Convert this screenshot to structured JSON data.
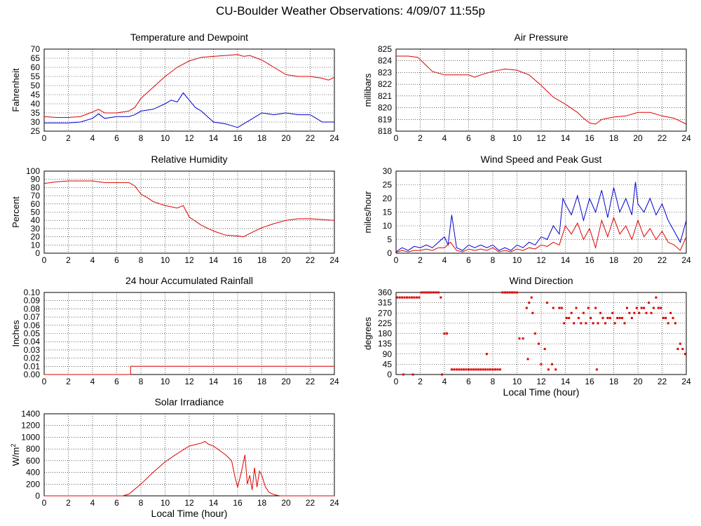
{
  "page": {
    "title": "CU-Boulder Weather Observations: 4/09/07 11:55p"
  },
  "colors": {
    "red": "#dd0000",
    "blue": "#0000cc",
    "grid": "#000000"
  },
  "chart_data": [
    {
      "id": "temperature",
      "type": "line",
      "title": "Temperature and Dewpoint",
      "xlabel": "",
      "ylabel": "Fahrenheit",
      "xlim": [
        0,
        24
      ],
      "ylim": [
        25,
        70
      ],
      "xticks": [
        0,
        2,
        4,
        6,
        8,
        10,
        12,
        14,
        16,
        18,
        20,
        22,
        24
      ],
      "yticks": [
        25,
        30,
        35,
        40,
        45,
        50,
        55,
        60,
        65,
        70
      ],
      "grid": true,
      "series": [
        {
          "name": "Temperature",
          "color": "#dd0000",
          "x": [
            0,
            1,
            2,
            3,
            4,
            4.5,
            5,
            6,
            7,
            7.5,
            8,
            9,
            10,
            11,
            12,
            13,
            14,
            15,
            16,
            16.5,
            17,
            18,
            19,
            20,
            21,
            22,
            23,
            23.5,
            24
          ],
          "y": [
            33,
            32.5,
            32.5,
            33,
            35.5,
            37,
            35,
            35,
            36,
            38,
            43,
            49,
            55,
            60,
            63.5,
            65.5,
            66,
            66.5,
            67,
            66,
            66.5,
            64,
            60,
            56,
            55,
            55,
            54,
            53,
            54.5
          ]
        },
        {
          "name": "Dewpoint",
          "color": "#0000cc",
          "x": [
            0,
            1,
            2,
            3,
            4,
            4.5,
            5,
            6,
            7,
            7.5,
            8,
            9,
            10,
            10.5,
            11,
            11.5,
            12,
            12.5,
            13,
            13.5,
            14,
            15,
            15.5,
            16,
            16.5,
            17,
            17.5,
            18,
            19,
            20,
            21,
            22,
            22.5,
            23,
            24
          ],
          "y": [
            29.5,
            29.5,
            29.5,
            30,
            32,
            34.5,
            32,
            33,
            33,
            34,
            36,
            37,
            40,
            42,
            41,
            46,
            42,
            38,
            36,
            33,
            30,
            29,
            28,
            27,
            29,
            31,
            33,
            35,
            34,
            35,
            34,
            34,
            32,
            30,
            30
          ]
        }
      ]
    },
    {
      "id": "pressure",
      "type": "line",
      "title": "Air Pressure",
      "xlabel": "",
      "ylabel": "millibars",
      "xlim": [
        0,
        24
      ],
      "ylim": [
        818,
        825
      ],
      "xticks": [
        0,
        2,
        4,
        6,
        8,
        10,
        12,
        14,
        16,
        18,
        20,
        22,
        24
      ],
      "yticks": [
        818,
        819,
        820,
        821,
        822,
        823,
        824,
        825
      ],
      "grid": true,
      "series": [
        {
          "name": "Air Pressure",
          "color": "#dd0000",
          "x": [
            0,
            1,
            1.8,
            2.3,
            3,
            4,
            5,
            6,
            6.5,
            7,
            8,
            9,
            10,
            11,
            12,
            13,
            14,
            15,
            15.5,
            16,
            16.5,
            17,
            18,
            19,
            20,
            21,
            22,
            23,
            24
          ],
          "y": [
            824.4,
            824.4,
            824.3,
            823.8,
            823.1,
            822.8,
            822.8,
            822.8,
            822.6,
            822.8,
            823.1,
            823.3,
            823.2,
            822.8,
            821.9,
            820.9,
            820.3,
            819.6,
            819.1,
            818.7,
            818.6,
            819,
            819.2,
            819.3,
            819.6,
            819.6,
            819.3,
            819.1,
            818.6
          ]
        }
      ]
    },
    {
      "id": "humidity",
      "type": "line",
      "title": "Relative Humidity",
      "xlabel": "",
      "ylabel": "Percent",
      "xlim": [
        0,
        24
      ],
      "ylim": [
        0,
        100
      ],
      "xticks": [
        0,
        2,
        4,
        6,
        8,
        10,
        12,
        14,
        16,
        18,
        20,
        22,
        24
      ],
      "yticks": [
        0,
        10,
        20,
        30,
        40,
        50,
        60,
        70,
        80,
        90,
        100
      ],
      "grid": true,
      "series": [
        {
          "name": "Relative Humidity",
          "color": "#dd0000",
          "x": [
            0,
            1,
            2,
            3,
            4,
            5,
            6,
            7,
            7.5,
            8,
            8.5,
            9,
            10,
            11,
            11.5,
            12,
            13,
            14,
            15,
            16,
            16.5,
            17,
            18,
            19,
            20,
            21,
            22,
            23,
            24
          ],
          "y": [
            85,
            87,
            88,
            88,
            88,
            86,
            86,
            86,
            82,
            72,
            68,
            63,
            58,
            55,
            58,
            44,
            34,
            27,
            22,
            21,
            20,
            24,
            31,
            36,
            40,
            42,
            42,
            41,
            40
          ]
        }
      ]
    },
    {
      "id": "wind-speed",
      "type": "line",
      "title": "Wind Speed and Peak Gust",
      "xlabel": "",
      "ylabel": "miles/hour",
      "xlim": [
        0,
        24
      ],
      "ylim": [
        0,
        30
      ],
      "xticks": [
        0,
        2,
        4,
        6,
        8,
        10,
        12,
        14,
        16,
        18,
        20,
        22,
        24
      ],
      "yticks": [
        0,
        5,
        10,
        15,
        20,
        25,
        30
      ],
      "grid": true,
      "series": [
        {
          "name": "Peak Gust",
          "color": "#0000cc",
          "x": [
            0,
            0.5,
            1,
            1.5,
            2,
            2.5,
            3,
            3.5,
            4,
            4.3,
            4.6,
            5,
            5.5,
            6,
            6.5,
            7,
            7.5,
            8,
            8.5,
            9,
            9.5,
            10,
            10.5,
            11,
            11.5,
            12,
            12.5,
            13,
            13.5,
            13.8,
            14,
            14.5,
            15,
            15.5,
            16,
            16.5,
            17,
            17.5,
            18,
            18.5,
            19,
            19.5,
            19.8,
            20,
            20.5,
            21,
            21.5,
            22,
            22.5,
            23,
            23.5,
            24
          ],
          "y": [
            0.5,
            2,
            1,
            2.5,
            2,
            3,
            2,
            4,
            6,
            3,
            14,
            2,
            1,
            3,
            2,
            3,
            2,
            3,
            1,
            2,
            1,
            3,
            2,
            4,
            3,
            6,
            5,
            10,
            7,
            20,
            18,
            14,
            21,
            12,
            20,
            15,
            23,
            13,
            24,
            15,
            20,
            14,
            26,
            18,
            15,
            20,
            14,
            18,
            12,
            8,
            4,
            12
          ]
        },
        {
          "name": "Wind Speed",
          "color": "#dd0000",
          "x": [
            0,
            0.5,
            1,
            1.5,
            2,
            2.5,
            3,
            3.5,
            4,
            4.5,
            5,
            5.5,
            6,
            6.5,
            7,
            7.5,
            8,
            8.5,
            9,
            9.5,
            10,
            10.5,
            11,
            11.5,
            12,
            12.5,
            13,
            13.5,
            14,
            14.5,
            15,
            15.5,
            16,
            16.5,
            17,
            17.5,
            18,
            18.5,
            19,
            19.5,
            20,
            20.5,
            21,
            21.5,
            22,
            22.5,
            23,
            23.5,
            24
          ],
          "y": [
            0.3,
            1,
            0.5,
            1,
            1,
            1.5,
            1,
            2,
            2,
            4,
            1,
            0.5,
            1.5,
            1,
            1.5,
            1,
            2,
            0.5,
            1,
            0.5,
            1.5,
            1,
            2,
            1.5,
            3,
            2.5,
            4,
            3,
            10,
            7,
            11,
            5,
            9,
            2,
            12,
            6,
            13,
            7,
            10,
            5,
            12,
            6,
            9,
            5,
            8,
            4,
            3,
            1,
            6
          ]
        }
      ]
    },
    {
      "id": "rainfall",
      "type": "line",
      "title": "24 hour Accumulated Rainfall",
      "xlabel": "",
      "ylabel": "Inches",
      "xlim": [
        0,
        24
      ],
      "ylim": [
        0,
        0.1
      ],
      "xticks": [
        0,
        2,
        4,
        6,
        8,
        10,
        12,
        14,
        16,
        18,
        20,
        22,
        24
      ],
      "yticks": [
        "0.00",
        "0.01",
        "0.02",
        "0.03",
        "0.04",
        "0.05",
        "0.06",
        "0.07",
        "0.08",
        "0.09",
        "0.10"
      ],
      "grid": true,
      "series": [
        {
          "name": "Accumulated Rainfall",
          "color": "#dd0000",
          "x": [
            0,
            7.0,
            7.15,
            7.15,
            24
          ],
          "y": [
            0,
            0,
            0,
            0.01,
            0.01
          ]
        }
      ]
    },
    {
      "id": "wind-direction",
      "type": "scatter",
      "title": "Wind Direction",
      "xlabel": "Local Time (hour)",
      "ylabel": "degrees",
      "xlim": [
        0,
        24
      ],
      "ylim": [
        0,
        360
      ],
      "xticks": [
        0,
        2,
        4,
        6,
        8,
        10,
        12,
        14,
        16,
        18,
        20,
        22,
        24
      ],
      "yticks": [
        0,
        45,
        90,
        135,
        180,
        225,
        270,
        315,
        360
      ],
      "grid": true,
      "series": [
        {
          "name": "Wind Direction",
          "color": "#dd0000",
          "x": [
            0.1,
            0.3,
            0.5,
            0.7,
            0.9,
            1.1,
            1.3,
            1.5,
            1.7,
            1.9,
            2.1,
            2.3,
            2.5,
            2.7,
            2.9,
            3.1,
            3.3,
            3.5,
            3.7,
            4.0,
            4.2,
            4.6,
            4.8,
            5.0,
            5.2,
            5.4,
            5.6,
            5.8,
            6.0,
            6.2,
            6.4,
            6.6,
            6.8,
            7.0,
            7.2,
            7.4,
            7.6,
            7.8,
            8.0,
            8.2,
            8.4,
            8.6,
            8.8,
            9.0,
            9.2,
            9.4,
            9.6,
            9.8,
            10.0,
            10.2,
            10.5,
            10.8,
            11.0,
            11.2,
            11.5,
            11.8,
            12.0,
            12.3,
            12.6,
            12.9,
            13.2,
            13.5,
            13.7,
            13.9,
            14.1,
            14.3,
            14.5,
            14.7,
            14.9,
            15.1,
            15.3,
            15.5,
            15.7,
            15.9,
            16.1,
            16.3,
            16.5,
            16.7,
            16.9,
            17.1,
            17.3,
            17.5,
            17.7,
            17.9,
            18.1,
            18.3,
            18.5,
            18.7,
            18.9,
            19.1,
            19.3,
            19.5,
            19.7,
            19.9,
            20.1,
            20.3,
            20.5,
            20.7,
            20.9,
            21.1,
            21.3,
            21.5,
            21.7,
            21.9,
            22.1,
            22.3,
            22.5,
            22.7,
            22.9,
            23.1,
            23.3,
            23.5,
            23.7,
            23.9,
            0.6,
            1.4,
            3.8,
            7.5,
            10.9,
            11.3,
            12.5,
            13.0,
            16.6
          ],
          "y": [
            338,
            338,
            338,
            338,
            338,
            338,
            338,
            338,
            338,
            338,
            360,
            360,
            360,
            360,
            360,
            360,
            360,
            360,
            338,
            180,
            180,
            22,
            22,
            22,
            22,
            22,
            22,
            22,
            22,
            22,
            22,
            22,
            22,
            22,
            22,
            22,
            22,
            22,
            22,
            22,
            22,
            22,
            360,
            360,
            360,
            360,
            360,
            360,
            360,
            158,
            158,
            292,
            315,
            338,
            180,
            135,
            45,
            112,
            22,
            45,
            22,
            292,
            292,
            225,
            248,
            248,
            270,
            225,
            292,
            248,
            225,
            270,
            225,
            292,
            248,
            225,
            292,
            225,
            270,
            248,
            225,
            248,
            248,
            270,
            225,
            248,
            248,
            248,
            225,
            292,
            270,
            248,
            270,
            292,
            270,
            292,
            292,
            270,
            315,
            270,
            292,
            338,
            292,
            292,
            248,
            248,
            225,
            270,
            248,
            225,
            112,
            135,
            112,
            90,
            0,
            0,
            0,
            90,
            68,
            270,
            315,
            292,
            22
          ]
        }
      ]
    },
    {
      "id": "solar",
      "type": "line",
      "title": "Solar Irradiance",
      "xlabel": "Local Time (hour)",
      "ylabel": "W/m",
      "ylabel_superscript": "2",
      "xlim": [
        0,
        24
      ],
      "ylim": [
        0,
        1400
      ],
      "xticks": [
        0,
        2,
        4,
        6,
        8,
        10,
        12,
        14,
        16,
        18,
        20,
        22,
        24
      ],
      "yticks": [
        0,
        200,
        400,
        600,
        800,
        1000,
        1200,
        1400
      ],
      "grid": true,
      "series": [
        {
          "name": "Solar Irradiance",
          "color": "#dd0000",
          "x": [
            0,
            6.5,
            7,
            8,
            9,
            10,
            11,
            12,
            13,
            13.3,
            13.6,
            14,
            15,
            15.5,
            15.8,
            16.0,
            16.3,
            16.6,
            16.8,
            17.0,
            17.2,
            17.4,
            17.6,
            17.8,
            18.0,
            18.3,
            18.6,
            19.0,
            19.5,
            24
          ],
          "y": [
            0,
            0,
            30,
            200,
            400,
            580,
            720,
            850,
            900,
            930,
            880,
            850,
            700,
            600,
            300,
            150,
            400,
            700,
            200,
            350,
            100,
            480,
            150,
            420,
            350,
            150,
            60,
            20,
            0,
            0
          ]
        }
      ]
    }
  ]
}
